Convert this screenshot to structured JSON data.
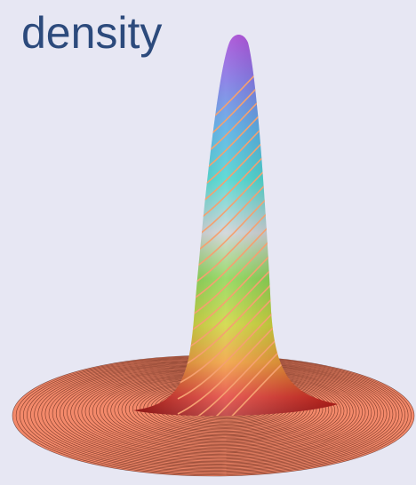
{
  "title": "density"
}
